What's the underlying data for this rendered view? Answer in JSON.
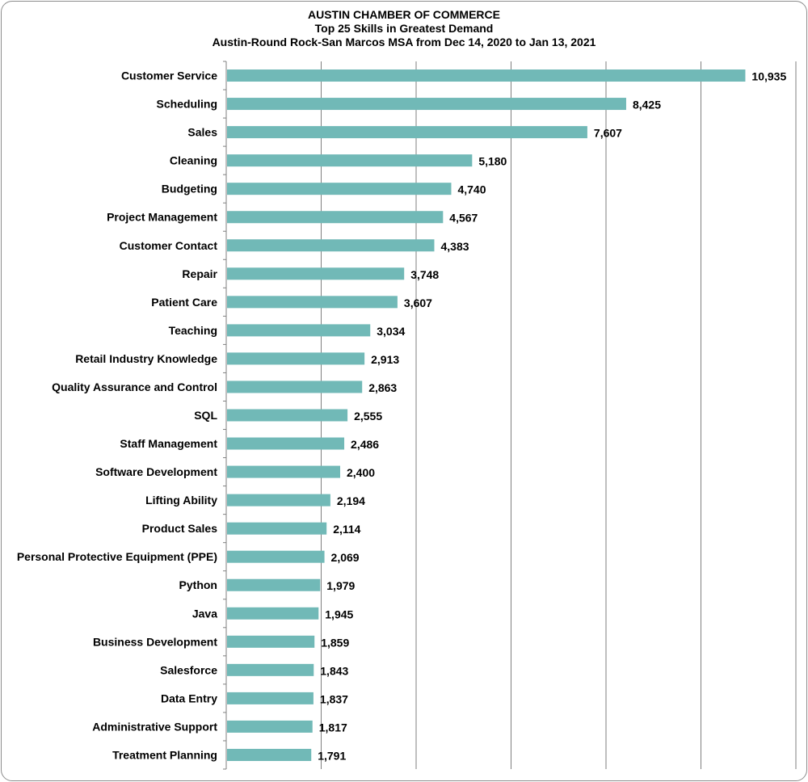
{
  "chart_data": {
    "type": "bar",
    "orientation": "horizontal",
    "title": "AUSTIN CHAMBER OF COMMERCE",
    "subtitle": "Top 25 Skills in Greatest Demand",
    "subtitle2": "Austin-Round Rock-San Marcos MSA from Dec 14, 2020 to Jan 13, 2021",
    "categories": [
      "Customer Service",
      "Scheduling",
      "Sales",
      "Cleaning",
      "Budgeting",
      "Project Management",
      "Customer Contact",
      "Repair",
      "Patient Care",
      "Teaching",
      "Retail Industry Knowledge",
      "Quality Assurance and Control",
      "SQL",
      "Staff Management",
      "Software Development",
      "Lifting Ability",
      "Product Sales",
      "Personal Protective Equipment (PPE)",
      "Python",
      "Java",
      "Business Development",
      "Salesforce",
      "Data Entry",
      "Administrative Support",
      "Treatment Planning"
    ],
    "values": [
      10935,
      8425,
      7607,
      5180,
      4740,
      4567,
      4383,
      3748,
      3607,
      3034,
      2913,
      2863,
      2555,
      2486,
      2400,
      2194,
      2114,
      2069,
      1979,
      1945,
      1859,
      1843,
      1837,
      1817,
      1791
    ],
    "value_labels": [
      "10,935",
      "8,425",
      "7,607",
      "5,180",
      "4,740",
      "4,567",
      "4,383",
      "3,748",
      "3,607",
      "3,034",
      "2,913",
      "2,863",
      "2,555",
      "2,486",
      "2,400",
      "2,194",
      "2,114",
      "2,069",
      "1,979",
      "1,945",
      "1,859",
      "1,843",
      "1,837",
      "1,817",
      "1,791"
    ],
    "xlim": [
      0,
      12000
    ],
    "grid": "vertical",
    "bar_color": "#71b9b7",
    "grid_color": "#7f7f7f"
  }
}
